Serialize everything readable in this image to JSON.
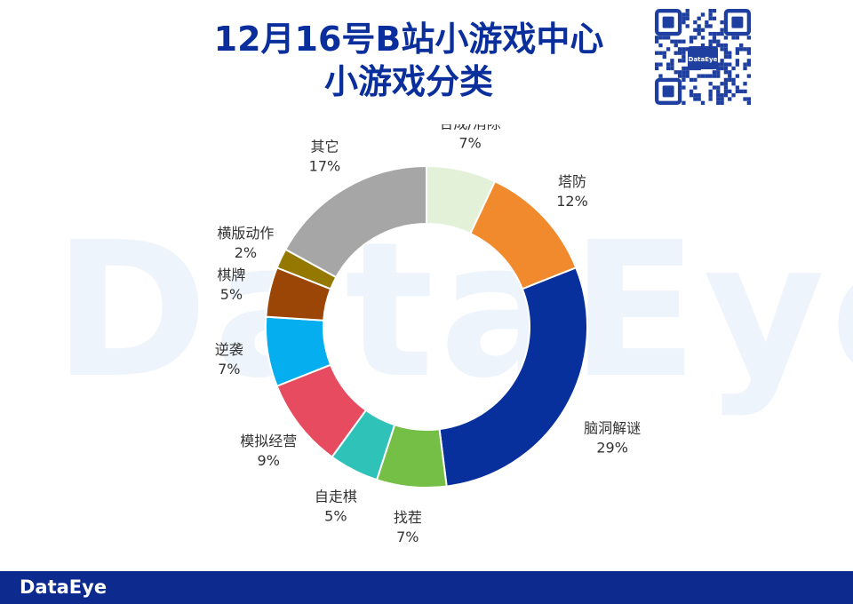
{
  "watermark": "DataEye",
  "title": {
    "line1": "12月16号B站小游戏中心",
    "line2": "小游戏分类"
  },
  "qr": {
    "logo": "DataEye"
  },
  "footer": {
    "logo": "DataEye"
  },
  "chart_data": {
    "type": "pie",
    "donut": true,
    "slices": [
      {
        "label": "合成/消除",
        "value": 7,
        "pct_label": "7%",
        "color": "#e3f1d9"
      },
      {
        "label": "塔防",
        "value": 12,
        "pct_label": "12%",
        "color": "#f08a2c"
      },
      {
        "label": "脑洞解谜",
        "value": 29,
        "pct_label": "29%",
        "color": "#08309c"
      },
      {
        "label": "找茬",
        "value": 7,
        "pct_label": "7%",
        "color": "#76bf46"
      },
      {
        "label": "自走棋",
        "value": 5,
        "pct_label": "5%",
        "color": "#2fc2b8"
      },
      {
        "label": "模拟经营",
        "value": 9,
        "pct_label": "9%",
        "color": "#e64b60"
      },
      {
        "label": "逆袭",
        "value": 7,
        "pct_label": "7%",
        "color": "#04aeef"
      },
      {
        "label": "棋牌",
        "value": 5,
        "pct_label": "5%",
        "color": "#9b4606"
      },
      {
        "label": "横版动作",
        "value": 2,
        "pct_label": "2%",
        "color": "#957800"
      },
      {
        "label": "其它",
        "value": 17,
        "pct_label": "17%",
        "color": "#a6a6a6"
      }
    ]
  }
}
